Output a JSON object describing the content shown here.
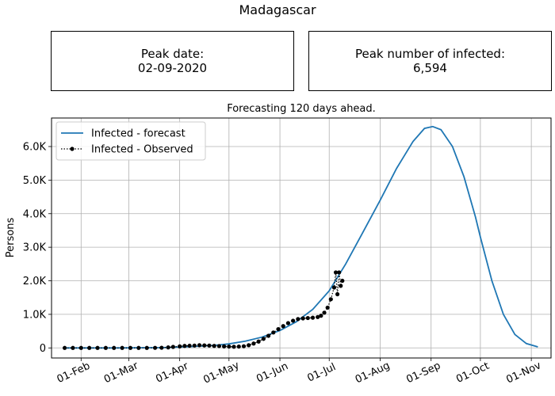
{
  "figure": {
    "suptitle": "Madagascar",
    "peak_date": {
      "label": "Peak date:",
      "value": "02-09-2020"
    },
    "peak_number": {
      "label": "Peak number of infected:",
      "value": "6,594"
    }
  },
  "colors": {
    "forecast": "#1f77b4",
    "observed": "#000000",
    "grid": "#b0b0b0"
  },
  "chart_data": {
    "type": "line",
    "title": "Forecasting 120 days ahead.",
    "xlabel": "",
    "ylabel": "Persons",
    "grid": true,
    "legend_position": "upper-left",
    "xlim": [
      "2020-01-14",
      "2020-11-13"
    ],
    "ylim": [
      -300,
      6850
    ],
    "x_ticks": [
      {
        "date": "2020-02-01",
        "label": "01-Feb"
      },
      {
        "date": "2020-03-01",
        "label": "01-Mar"
      },
      {
        "date": "2020-04-01",
        "label": "01-Apr"
      },
      {
        "date": "2020-05-01",
        "label": "01-May"
      },
      {
        "date": "2020-06-01",
        "label": "01-Jun"
      },
      {
        "date": "2020-07-01",
        "label": "01-Jul"
      },
      {
        "date": "2020-08-01",
        "label": "01-Aug"
      },
      {
        "date": "2020-09-01",
        "label": "01-Sep"
      },
      {
        "date": "2020-10-01",
        "label": "01-Oct"
      },
      {
        "date": "2020-11-01",
        "label": "01-Nov"
      }
    ],
    "y_ticks": [
      {
        "value": 0,
        "label": "0"
      },
      {
        "value": 1000,
        "label": "1.0K"
      },
      {
        "value": 2000,
        "label": "2.0K"
      },
      {
        "value": 3000,
        "label": "3.0K"
      },
      {
        "value": 4000,
        "label": "4.0K"
      },
      {
        "value": 5000,
        "label": "5.0K"
      },
      {
        "value": 6000,
        "label": "6.0K"
      }
    ],
    "series": [
      {
        "name": "Infected - forecast",
        "style": "solid",
        "color": "#1f77b4",
        "points": [
          [
            "2020-01-22",
            0
          ],
          [
            "2020-02-22",
            0
          ],
          [
            "2020-03-22",
            10
          ],
          [
            "2020-04-08",
            40
          ],
          [
            "2020-04-22",
            75
          ],
          [
            "2020-05-01",
            120
          ],
          [
            "2020-05-11",
            200
          ],
          [
            "2020-05-21",
            320
          ],
          [
            "2020-06-01",
            520
          ],
          [
            "2020-06-11",
            780
          ],
          [
            "2020-06-21",
            1150
          ],
          [
            "2020-07-01",
            1700
          ],
          [
            "2020-07-11",
            2500
          ],
          [
            "2020-07-21",
            3400
          ],
          [
            "2020-08-01",
            4400
          ],
          [
            "2020-08-11",
            5350
          ],
          [
            "2020-08-21",
            6150
          ],
          [
            "2020-08-28",
            6540
          ],
          [
            "2020-09-02",
            6594
          ],
          [
            "2020-09-07",
            6500
          ],
          [
            "2020-09-14",
            6000
          ],
          [
            "2020-09-21",
            5100
          ],
          [
            "2020-09-28",
            3900
          ],
          [
            "2020-10-01",
            3300
          ],
          [
            "2020-10-08",
            2000
          ],
          [
            "2020-10-15",
            1000
          ],
          [
            "2020-10-22",
            400
          ],
          [
            "2020-10-29",
            130
          ],
          [
            "2020-11-05",
            30
          ]
        ]
      },
      {
        "name": "Infected - Observed",
        "style": "dotted-markers",
        "color": "#000000",
        "points": [
          [
            "2020-01-22",
            0
          ],
          [
            "2020-01-27",
            0
          ],
          [
            "2020-02-01",
            0
          ],
          [
            "2020-02-06",
            0
          ],
          [
            "2020-02-11",
            0
          ],
          [
            "2020-02-16",
            0
          ],
          [
            "2020-02-21",
            0
          ],
          [
            "2020-02-26",
            0
          ],
          [
            "2020-03-02",
            0
          ],
          [
            "2020-03-07",
            0
          ],
          [
            "2020-03-12",
            0
          ],
          [
            "2020-03-17",
            2
          ],
          [
            "2020-03-21",
            5
          ],
          [
            "2020-03-25",
            15
          ],
          [
            "2020-03-28",
            30
          ],
          [
            "2020-04-01",
            45
          ],
          [
            "2020-04-04",
            60
          ],
          [
            "2020-04-07",
            65
          ],
          [
            "2020-04-10",
            70
          ],
          [
            "2020-04-13",
            80
          ],
          [
            "2020-04-16",
            75
          ],
          [
            "2020-04-19",
            70
          ],
          [
            "2020-04-22",
            60
          ],
          [
            "2020-04-25",
            55
          ],
          [
            "2020-04-28",
            45
          ],
          [
            "2020-05-01",
            40
          ],
          [
            "2020-05-04",
            35
          ],
          [
            "2020-05-07",
            40
          ],
          [
            "2020-05-10",
            50
          ],
          [
            "2020-05-13",
            80
          ],
          [
            "2020-05-16",
            130
          ],
          [
            "2020-05-19",
            190
          ],
          [
            "2020-05-22",
            270
          ],
          [
            "2020-05-25",
            360
          ],
          [
            "2020-05-28",
            460
          ],
          [
            "2020-05-31",
            560
          ],
          [
            "2020-06-03",
            650
          ],
          [
            "2020-06-06",
            740
          ],
          [
            "2020-06-09",
            810
          ],
          [
            "2020-06-12",
            860
          ],
          [
            "2020-06-15",
            880
          ],
          [
            "2020-06-18",
            890
          ],
          [
            "2020-06-21",
            900
          ],
          [
            "2020-06-24",
            920
          ],
          [
            "2020-06-26",
            960
          ],
          [
            "2020-06-28",
            1050
          ],
          [
            "2020-06-30",
            1200
          ],
          [
            "2020-07-02",
            1450
          ],
          [
            "2020-07-04",
            1800
          ],
          [
            "2020-07-05",
            2250
          ],
          [
            "2020-07-06",
            1600
          ],
          [
            "2020-07-07",
            2250
          ],
          [
            "2020-07-08",
            1850
          ],
          [
            "2020-07-09",
            2000
          ]
        ]
      }
    ]
  }
}
